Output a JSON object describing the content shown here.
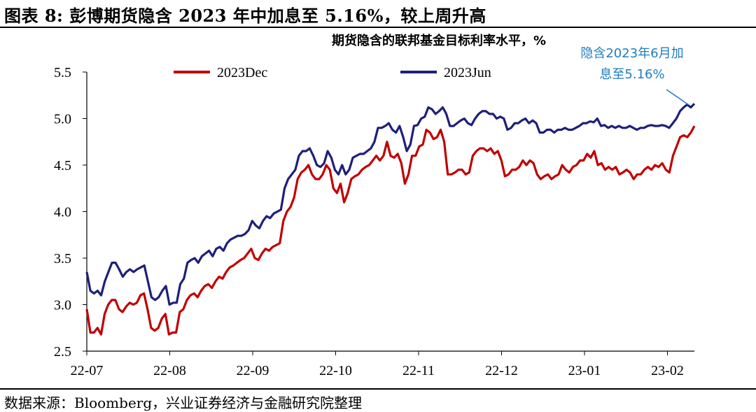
{
  "title": "图表 8: 彭博期货隐含 2023 年中加息至 5.16%，较上周升高",
  "source": "数据来源：Bloomberg，兴业证券经济与金融研究院整理",
  "colors": {
    "dec": "#c00000",
    "jun": "#1f1f7a",
    "annotation": "#1f7cc0"
  },
  "chart_data": {
    "type": "line",
    "title": "期货隐含的联邦基金目标利率水平，%",
    "ylim": [
      2.5,
      5.5
    ],
    "yticks": [
      "2.5",
      "3.0",
      "3.5",
      "4.0",
      "4.5",
      "5.0",
      "5.5"
    ],
    "xticks": [
      "22-07",
      "22-08",
      "22-09",
      "22-10",
      "22-11",
      "22-12",
      "23-01",
      "23-02"
    ],
    "legend": "top-left",
    "annotation": [
      "隐含2023年6月加",
      "息至5.16%"
    ],
    "series": [
      {
        "name": "2023Dec",
        "values": [
          2.95,
          2.7,
          2.7,
          2.75,
          2.68,
          2.9,
          3.0,
          3.05,
          3.05,
          2.95,
          2.92,
          2.98,
          3.02,
          3.0,
          3.02,
          3.1,
          3.12,
          2.95,
          2.75,
          2.72,
          2.75,
          2.85,
          2.9,
          2.68,
          2.7,
          2.7,
          2.92,
          2.95,
          3.05,
          3.1,
          3.12,
          3.08,
          3.15,
          3.2,
          3.22,
          3.18,
          3.25,
          3.3,
          3.28,
          3.35,
          3.4,
          3.42,
          3.45,
          3.48,
          3.5,
          3.55,
          3.6,
          3.5,
          3.48,
          3.55,
          3.6,
          3.58,
          3.62,
          3.64,
          3.66,
          3.9,
          4.0,
          4.05,
          4.15,
          4.35,
          4.42,
          4.45,
          4.5,
          4.4,
          4.35,
          4.35,
          4.4,
          4.5,
          4.45,
          4.25,
          4.2,
          4.3,
          4.1,
          4.2,
          4.35,
          4.38,
          4.4,
          4.45,
          4.48,
          4.5,
          4.55,
          4.6,
          4.55,
          4.6,
          4.75,
          4.6,
          4.58,
          4.62,
          4.52,
          4.3,
          4.4,
          4.6,
          4.6,
          4.7,
          4.72,
          4.88,
          4.85,
          4.78,
          4.8,
          4.88,
          4.75,
          4.4,
          4.4,
          4.42,
          4.45,
          4.45,
          4.4,
          4.42,
          4.6,
          4.65,
          4.68,
          4.68,
          4.65,
          4.68,
          4.62,
          4.65,
          4.55,
          4.38,
          4.4,
          4.45,
          4.45,
          4.48,
          4.55,
          4.5,
          4.55,
          4.52,
          4.4,
          4.35,
          4.38,
          4.4,
          4.35,
          4.38,
          4.4,
          4.5,
          4.45,
          4.42,
          4.48,
          4.5,
          4.55,
          4.55,
          4.62,
          4.58,
          4.65,
          4.5,
          4.52,
          4.45,
          4.48,
          4.45,
          4.48,
          4.4,
          4.42,
          4.45,
          4.42,
          4.35,
          4.4,
          4.4,
          4.45,
          4.48,
          4.45,
          4.5,
          4.48,
          4.52,
          4.45,
          4.42,
          4.6,
          4.7,
          4.8,
          4.82,
          4.8,
          4.85,
          4.92
        ]
      },
      {
        "name": "2023Jun",
        "values": [
          3.35,
          3.15,
          3.12,
          3.15,
          3.1,
          3.25,
          3.35,
          3.45,
          3.45,
          3.38,
          3.3,
          3.35,
          3.38,
          3.35,
          3.38,
          3.4,
          3.42,
          3.25,
          3.08,
          3.05,
          3.08,
          3.15,
          3.2,
          3.0,
          3.02,
          3.02,
          3.22,
          3.28,
          3.45,
          3.48,
          3.5,
          3.45,
          3.52,
          3.55,
          3.58,
          3.52,
          3.6,
          3.62,
          3.58,
          3.66,
          3.7,
          3.72,
          3.74,
          3.74,
          3.76,
          3.8,
          3.9,
          3.85,
          3.82,
          3.9,
          3.95,
          3.93,
          3.98,
          4.0,
          4.02,
          4.25,
          4.35,
          4.4,
          4.45,
          4.6,
          4.65,
          4.65,
          4.68,
          4.6,
          4.5,
          4.48,
          4.52,
          4.65,
          4.58,
          4.45,
          4.4,
          4.5,
          4.4,
          4.45,
          4.58,
          4.6,
          4.62,
          4.62,
          4.65,
          4.68,
          4.75,
          4.9,
          4.9,
          4.92,
          4.95,
          4.88,
          4.85,
          4.92,
          4.8,
          4.65,
          4.72,
          4.92,
          4.93,
          5.0,
          5.02,
          5.12,
          5.1,
          5.05,
          5.08,
          5.12,
          5.05,
          4.92,
          4.92,
          4.95,
          4.98,
          5.0,
          4.95,
          4.93,
          5.0,
          5.05,
          5.08,
          5.08,
          5.05,
          5.05,
          5.0,
          5.02,
          5.0,
          4.88,
          4.9,
          4.95,
          4.95,
          4.98,
          5.0,
          4.95,
          4.98,
          4.95,
          4.85,
          4.85,
          4.88,
          4.88,
          4.85,
          4.88,
          4.88,
          4.9,
          4.88,
          4.88,
          4.9,
          4.92,
          4.95,
          4.95,
          4.97,
          4.96,
          5.0,
          4.92,
          4.93,
          4.9,
          4.92,
          4.9,
          4.92,
          4.9,
          4.9,
          4.92,
          4.9,
          4.88,
          4.9,
          4.9,
          4.92,
          4.93,
          4.92,
          4.92,
          4.93,
          4.92,
          4.9,
          4.95,
          5.0,
          5.08,
          5.12,
          5.15,
          5.12,
          5.16
        ]
      }
    ]
  }
}
